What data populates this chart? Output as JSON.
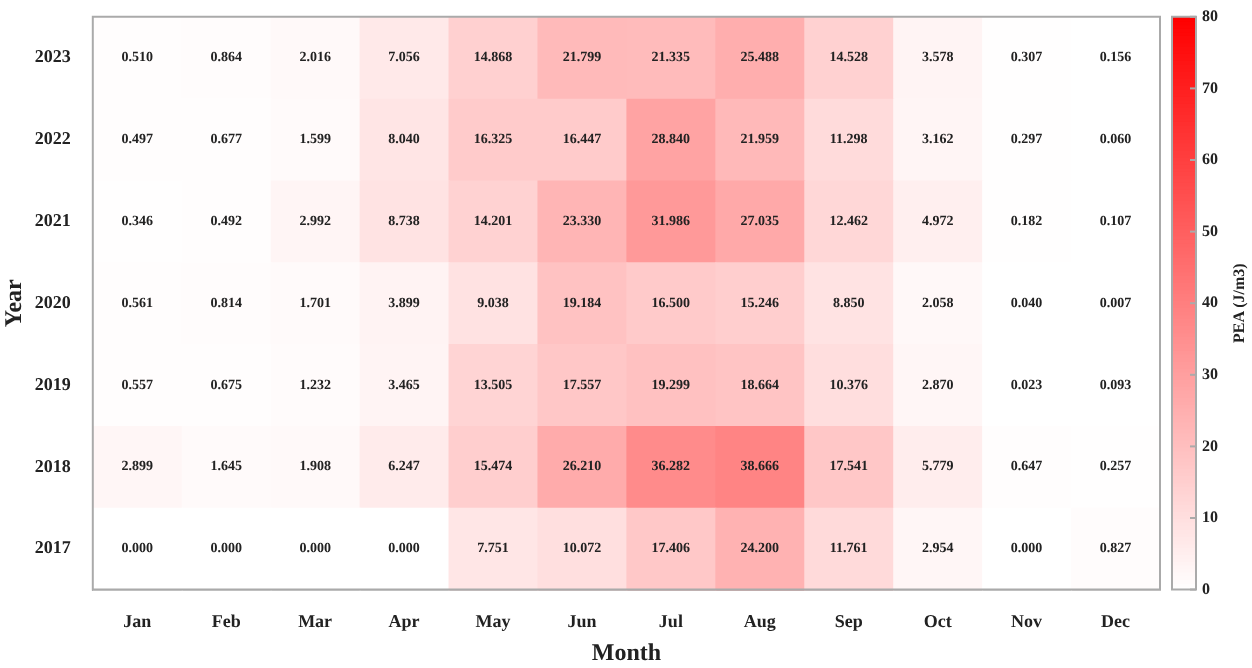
{
  "chart_data": {
    "type": "heatmap",
    "xlabel": "Month",
    "ylabel": "Year",
    "clabel": "PEA (J/m3)",
    "categories": [
      "Jan",
      "Feb",
      "Mar",
      "Apr",
      "May",
      "Jun",
      "Jul",
      "Aug",
      "Sep",
      "Oct",
      "Nov",
      "Dec"
    ],
    "y_categories": [
      "2023",
      "2022",
      "2021",
      "2020",
      "2019",
      "2018",
      "2017"
    ],
    "cells": [
      [
        0.51,
        0.864,
        2.016,
        7.056,
        14.868,
        21.799,
        21.335,
        25.488,
        14.528,
        3.578,
        0.307,
        0.156
      ],
      [
        0.497,
        0.677,
        1.599,
        8.04,
        16.325,
        16.447,
        28.84,
        21.959,
        11.298,
        3.162,
        0.297,
        0.06
      ],
      [
        0.346,
        0.492,
        2.992,
        8.738,
        14.201,
        23.33,
        31.986,
        27.035,
        12.462,
        4.972,
        0.182,
        0.107
      ],
      [
        0.561,
        0.814,
        1.701,
        3.899,
        9.038,
        19.184,
        16.5,
        15.246,
        8.85,
        2.058,
        0.04,
        0.007
      ],
      [
        0.557,
        0.675,
        1.232,
        3.465,
        13.505,
        17.557,
        19.299,
        18.664,
        10.376,
        2.87,
        0.023,
        0.093
      ],
      [
        2.899,
        1.645,
        1.908,
        6.247,
        15.474,
        26.21,
        36.282,
        38.666,
        17.541,
        5.779,
        0.647,
        0.257
      ],
      [
        0.0,
        0.0,
        0.0,
        0.0,
        7.751,
        10.072,
        17.406,
        24.2,
        11.761,
        2.954,
        0.0,
        0.827
      ]
    ],
    "cell_labels": [
      [
        "0.510",
        "0.864",
        "2.016",
        "7.056",
        "14.868",
        "21.799",
        "21.335",
        "25.488",
        "14.528",
        "3.578",
        "0.307",
        "0.156"
      ],
      [
        "0.497",
        "0.677",
        "1.599",
        "8.040",
        "16.325",
        "16.447",
        "28.840",
        "21.959",
        "11.298",
        "3.162",
        "0.297",
        "0.060"
      ],
      [
        "0.346",
        "0.492",
        "2.992",
        "8.738",
        "14.201",
        "23.330",
        "31.986",
        "27.035",
        "12.462",
        "4.972",
        "0.182",
        "0.107"
      ],
      [
        "0.561",
        "0.814",
        "1.701",
        "3.899",
        "9.038",
        "19.184",
        "16.500",
        "15.246",
        "8.850",
        "2.058",
        "0.040",
        "0.007"
      ],
      [
        "0.557",
        "0.675",
        "1.232",
        "3.465",
        "13.505",
        "17.557",
        "19.299",
        "18.664",
        "10.376",
        "2.870",
        "0.023",
        "0.093"
      ],
      [
        "2.899",
        "1.645",
        "1.908",
        "6.247",
        "15.474",
        "26.210",
        "36.282",
        "38.666",
        "17.541",
        "5.779",
        "0.647",
        "0.257"
      ],
      [
        "0.000",
        "0.000",
        "0.000",
        "0.000",
        "7.751",
        "10.072",
        "17.406",
        "24.200",
        "11.761",
        "2.954",
        "0.000",
        "0.827"
      ]
    ],
    "clim": [
      0,
      80
    ],
    "cticks": [
      0,
      10,
      20,
      30,
      40,
      50,
      60,
      70,
      80
    ]
  }
}
